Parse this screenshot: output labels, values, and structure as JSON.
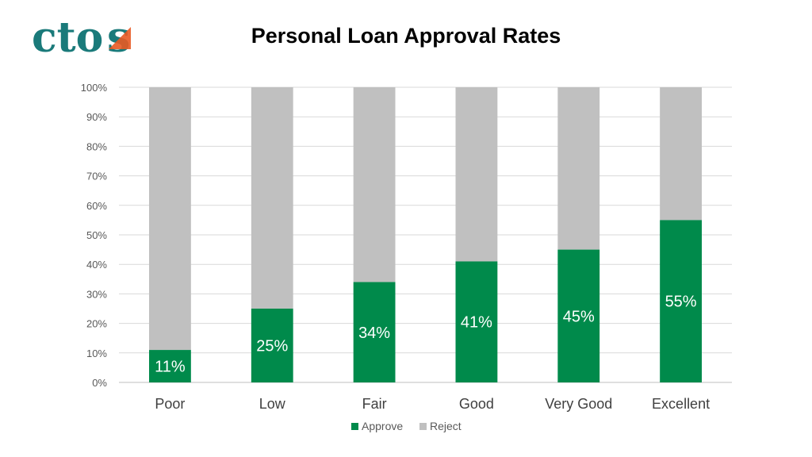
{
  "brand": {
    "logo_text": "ctos",
    "color_main": "#1a7a7a",
    "color_accent": "#e85a24"
  },
  "chart_data": {
    "type": "bar",
    "stacked": true,
    "percent_stacked": true,
    "title": "Personal Loan Approval Rates",
    "categories": [
      "Poor",
      "Low",
      "Fair",
      "Good",
      "Very Good",
      "Excellent"
    ],
    "series": [
      {
        "name": "Approve",
        "values": [
          11,
          25,
          34,
          41,
          45,
          55
        ],
        "color": "#008a4b"
      },
      {
        "name": "Reject",
        "values": [
          89,
          75,
          66,
          59,
          55,
          45
        ],
        "color": "#c0c0c0"
      }
    ],
    "data_labels": [
      "11%",
      "25%",
      "34%",
      "41%",
      "45%",
      "55%"
    ],
    "ylim": [
      0,
      100
    ],
    "yticks": [
      "0%",
      "10%",
      "20%",
      "30%",
      "40%",
      "50%",
      "60%",
      "70%",
      "80%",
      "90%",
      "100%"
    ],
    "grid": true,
    "legend": "bottom"
  }
}
